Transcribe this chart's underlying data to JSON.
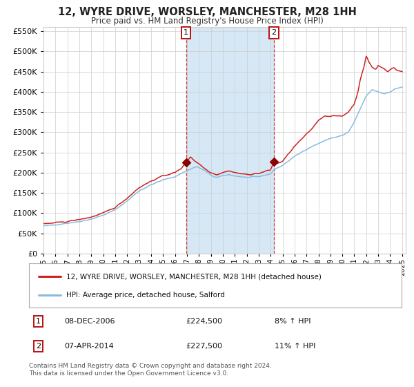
{
  "title": "12, WYRE DRIVE, WORSLEY, MANCHESTER, M28 1HH",
  "subtitle": "Price paid vs. HM Land Registry's House Price Index (HPI)",
  "legend_line1": "12, WYRE DRIVE, WORSLEY, MANCHESTER, M28 1HH (detached house)",
  "legend_line2": "HPI: Average price, detached house, Salford",
  "annotation1_date": "08-DEC-2006",
  "annotation1_price": "£224,500",
  "annotation1_hpi": "8% ↑ HPI",
  "annotation2_date": "07-APR-2014",
  "annotation2_price": "£227,500",
  "annotation2_hpi": "11% ↑ HPI",
  "footer": "Contains HM Land Registry data © Crown copyright and database right 2024.\nThis data is licensed under the Open Government Licence v3.0.",
  "hpi_color": "#87BCDE",
  "price_color": "#CC2222",
  "marker_color": "#8B0000",
  "shade_color": "#D6E8F5",
  "grid_color": "#CCCCCC",
  "bg_color": "#FFFFFF",
  "ann_box_color": "#BB1111",
  "ylim": [
    0,
    560000
  ],
  "yticks": [
    0,
    50000,
    100000,
    150000,
    200000,
    250000,
    300000,
    350000,
    400000,
    450000,
    500000,
    550000
  ],
  "sale1_x": 2006.92,
  "sale1_y": 224500,
  "sale2_x": 2014.27,
  "sale2_y": 227500,
  "xmin": 1995,
  "xmax": 2025.3
}
